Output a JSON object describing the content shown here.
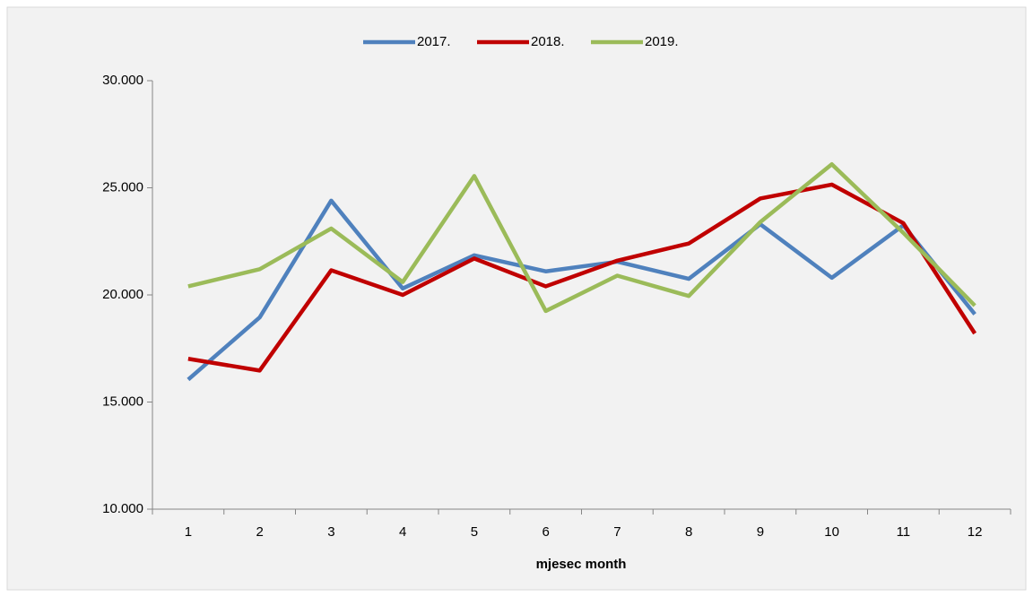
{
  "chart_data": {
    "type": "line",
    "x_label": "mjesec month",
    "categories": [
      "1",
      "2",
      "3",
      "4",
      "5",
      "6",
      "7",
      "8",
      "9",
      "10",
      "11",
      "12"
    ],
    "series": [
      {
        "name": "2017.",
        "color": "#4f81bd",
        "values": [
          16050,
          18950,
          24400,
          20300,
          21850,
          21100,
          21550,
          20750,
          23300,
          20800,
          23250,
          19100
        ]
      },
      {
        "name": "2018.",
        "color": "#c00000",
        "values": [
          17020,
          16470,
          21150,
          20000,
          21700,
          20400,
          21600,
          22400,
          24500,
          25150,
          23350,
          18200
        ]
      },
      {
        "name": "2019.",
        "color": "#9bbb59",
        "values": [
          20400,
          21200,
          23100,
          20600,
          25550,
          19250,
          20900,
          19950,
          23400,
          26100,
          22900,
          19500
        ]
      }
    ],
    "ylim": [
      10000,
      30000
    ],
    "yticks": [
      {
        "value": 10000,
        "label": "10.000"
      },
      {
        "value": 15000,
        "label": "15.000"
      },
      {
        "value": 20000,
        "label": "20.000"
      },
      {
        "value": 25000,
        "label": "25.000"
      },
      {
        "value": 30000,
        "label": "30.000"
      }
    ],
    "legend": "top",
    "grid": false
  }
}
